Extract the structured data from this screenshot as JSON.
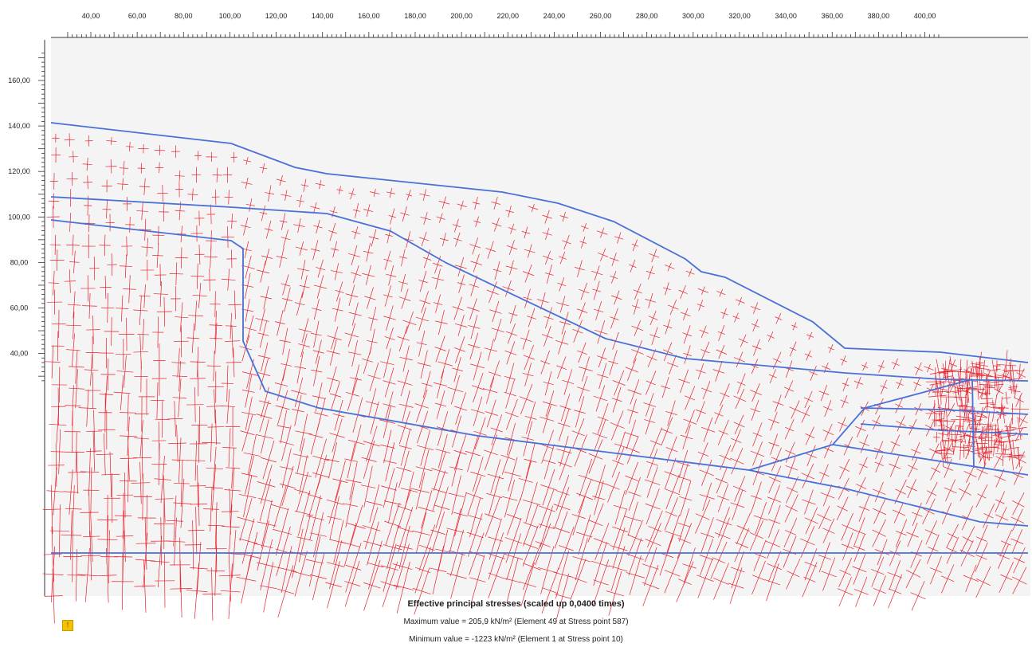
{
  "window": {
    "background": "#f4f4f4"
  },
  "ruler_top": {
    "ticks": [
      "40,00",
      "60,00",
      "80,00",
      "100,00",
      "120,00",
      "140,00",
      "160,00",
      "180,00",
      "200,00",
      "220,00",
      "240,00",
      "260,00",
      "280,00",
      "300,00",
      "320,00",
      "340,00",
      "360,00",
      "380,00",
      "400,00"
    ]
  },
  "ruler_left": {
    "ticks": [
      "160,00",
      "140,00",
      "120,00",
      "100,00",
      "80,00",
      "60,00",
      "40,00"
    ]
  },
  "colors": {
    "boundary": "#4a6fd6",
    "stress": "#e8202a",
    "ruler_line": "#333333"
  },
  "caption": {
    "title": "Effective principal stresses (scaled up 0,0400 times)",
    "max": "Maximum value = 205,9 kN/m² (Element 49 at Stress point 587)",
    "min": "Minimum value = -1223 kN/m² (Element 1 at Stress point 10)"
  },
  "icons": {
    "warning": "warning-icon"
  }
}
